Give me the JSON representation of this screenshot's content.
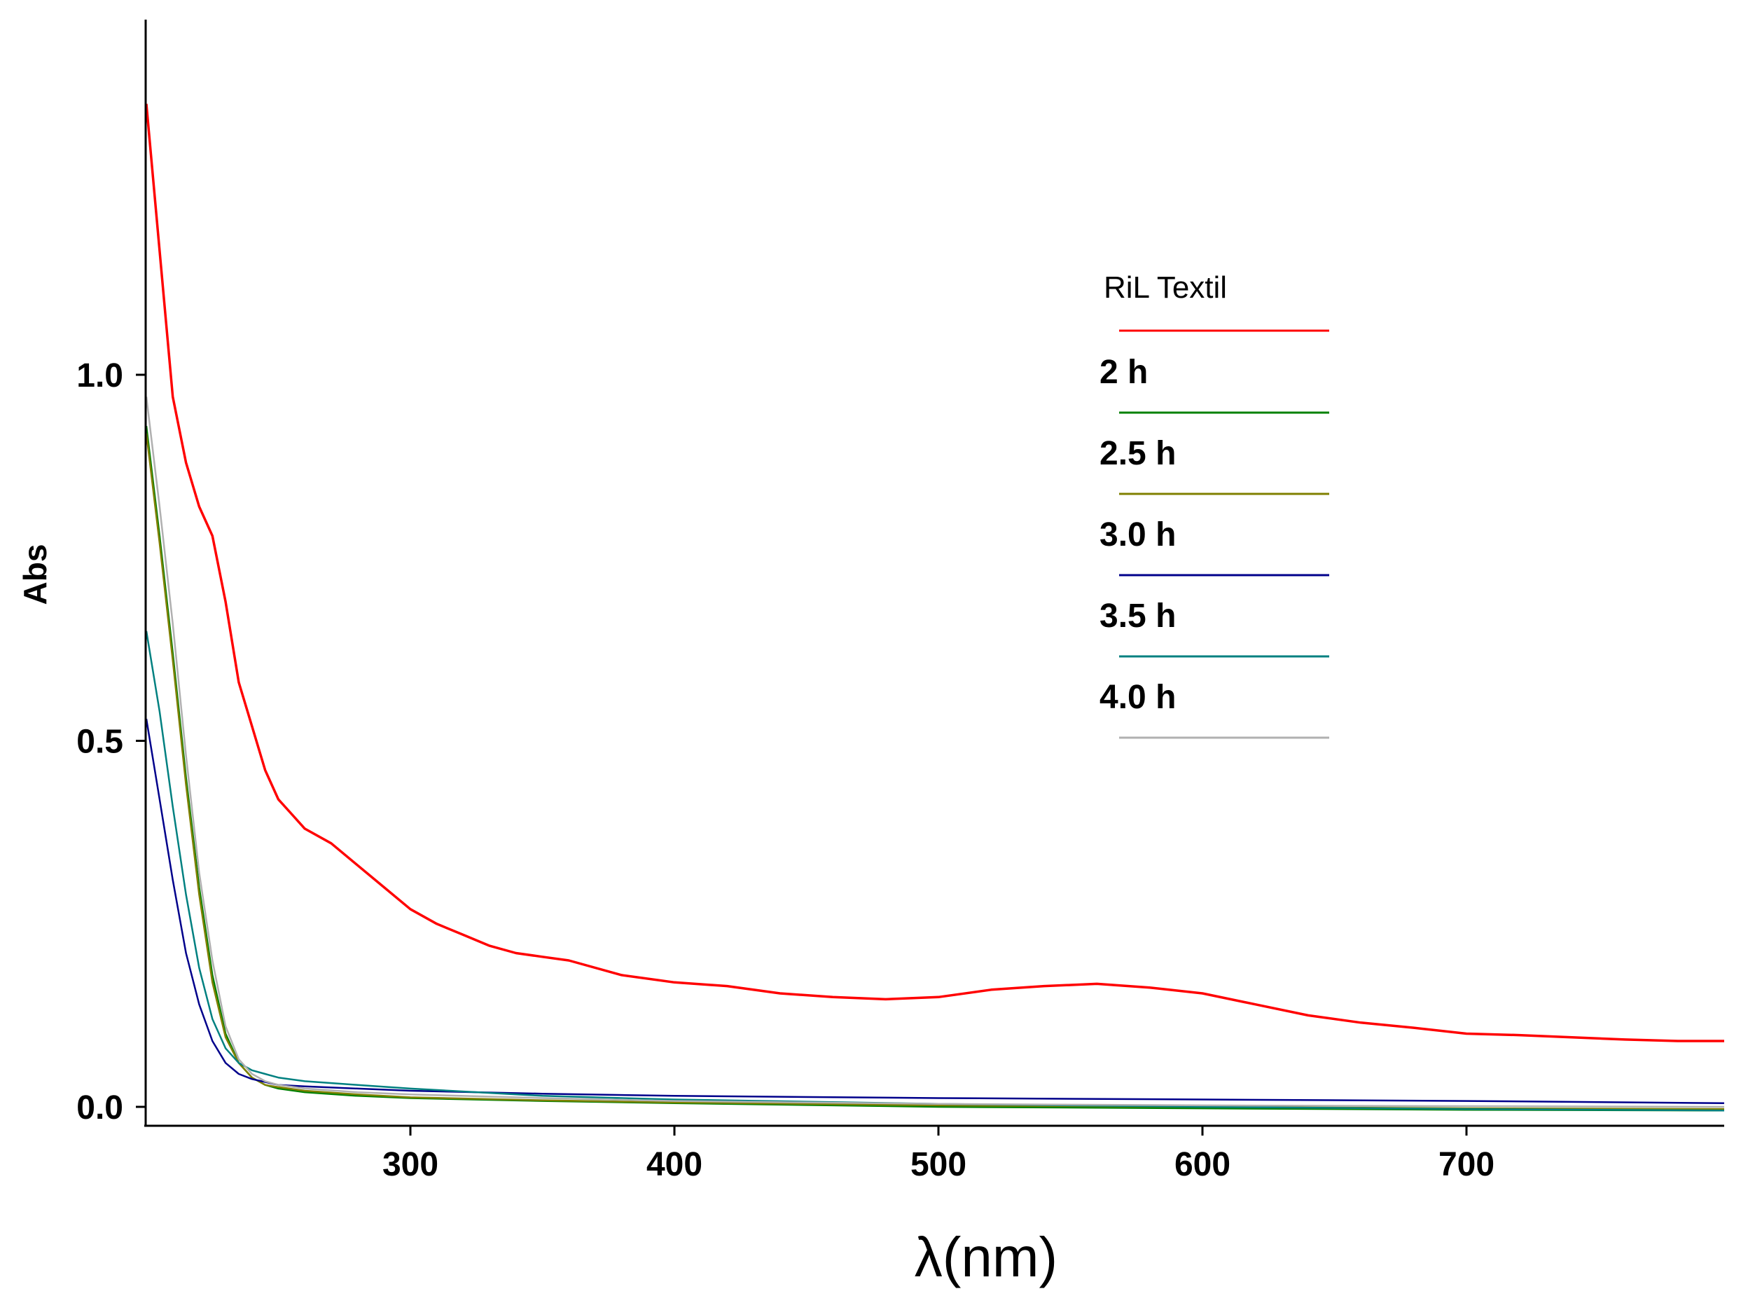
{
  "chart_data": {
    "type": "line",
    "xlabel": "λ(nm)",
    "ylabel": "Abs",
    "xlim": [
      200,
      800
    ],
    "ylim": [
      -0.03,
      1.5
    ],
    "x_ticks": [
      300,
      400,
      500,
      600,
      700
    ],
    "x_tick_labels": [
      "300",
      "400",
      "500",
      "600",
      "700"
    ],
    "y_ticks": [
      0.0,
      0.5,
      1.0
    ],
    "y_tick_labels": [
      "0.0",
      "0.5",
      "1.0"
    ],
    "grid": false,
    "legend_placement": "top-right",
    "legend_title": "RiL  Textil",
    "series": [
      {
        "name": "RiL  Textil",
        "color": "#ff0000",
        "legend": false,
        "x": [
          200,
          210,
          215,
          220,
          225,
          230,
          235,
          240,
          245,
          250,
          255,
          260,
          270,
          280,
          290,
          300,
          310,
          320,
          330,
          340,
          350,
          360,
          380,
          400,
          420,
          440,
          460,
          480,
          500,
          520,
          540,
          560,
          580,
          600,
          620,
          640,
          660,
          680,
          700,
          720,
          740,
          760,
          780,
          800
        ],
        "y": [
          1.37,
          0.97,
          0.88,
          0.82,
          0.78,
          0.69,
          0.58,
          0.52,
          0.46,
          0.42,
          0.4,
          0.38,
          0.36,
          0.33,
          0.3,
          0.27,
          0.25,
          0.235,
          0.22,
          0.21,
          0.205,
          0.2,
          0.18,
          0.17,
          0.165,
          0.155,
          0.15,
          0.147,
          0.15,
          0.16,
          0.165,
          0.168,
          0.163,
          0.155,
          0.14,
          0.125,
          0.115,
          0.108,
          0.1,
          0.098,
          0.095,
          0.092,
          0.09,
          0.09
        ]
      },
      {
        "name": "2 h",
        "color": "#008000",
        "legend": true,
        "x": [
          200,
          205,
          210,
          215,
          220,
          225,
          230,
          235,
          240,
          245,
          250,
          260,
          280,
          300,
          350,
          400,
          500,
          600,
          700,
          800
        ],
        "y": [
          0.93,
          0.78,
          0.62,
          0.45,
          0.3,
          0.18,
          0.1,
          0.06,
          0.04,
          0.03,
          0.025,
          0.02,
          0.015,
          0.012,
          0.008,
          0.005,
          0.0,
          -0.002,
          -0.004,
          -0.005
        ]
      },
      {
        "name": "2.5 h",
        "color": "#808000",
        "legend": true,
        "x": [
          200,
          205,
          210,
          215,
          220,
          225,
          230,
          235,
          240,
          245,
          250,
          260,
          280,
          300,
          350,
          400,
          500,
          600,
          700,
          800
        ],
        "y": [
          0.92,
          0.77,
          0.61,
          0.44,
          0.29,
          0.17,
          0.095,
          0.06,
          0.04,
          0.03,
          0.027,
          0.022,
          0.017,
          0.013,
          0.009,
          0.006,
          0.002,
          0.0,
          -0.002,
          -0.003
        ]
      },
      {
        "name": "3.0 h",
        "color": "#00008b",
        "legend": true,
        "x": [
          200,
          205,
          210,
          215,
          220,
          225,
          230,
          235,
          240,
          245,
          250,
          260,
          280,
          300,
          350,
          400,
          500,
          600,
          700,
          800
        ],
        "y": [
          0.53,
          0.42,
          0.31,
          0.21,
          0.14,
          0.09,
          0.06,
          0.045,
          0.038,
          0.034,
          0.03,
          0.028,
          0.025,
          0.022,
          0.018,
          0.015,
          0.012,
          0.01,
          0.008,
          0.005
        ]
      },
      {
        "name": "3.5 h",
        "color": "#008080",
        "legend": true,
        "x": [
          200,
          205,
          210,
          215,
          220,
          225,
          230,
          235,
          240,
          245,
          250,
          260,
          280,
          300,
          350,
          400,
          500,
          600,
          700,
          800
        ],
        "y": [
          0.65,
          0.54,
          0.41,
          0.29,
          0.19,
          0.12,
          0.08,
          0.06,
          0.05,
          0.045,
          0.04,
          0.035,
          0.03,
          0.025,
          0.015,
          0.01,
          0.004,
          0.0,
          -0.003,
          -0.005
        ]
      },
      {
        "name": "4.0 h",
        "color": "#b0b0b0",
        "legend": true,
        "x": [
          200,
          205,
          210,
          215,
          220,
          225,
          230,
          235,
          240,
          245,
          250,
          260,
          280,
          300,
          350,
          400,
          500,
          600,
          700,
          800
        ],
        "y": [
          0.97,
          0.82,
          0.66,
          0.48,
          0.32,
          0.2,
          0.11,
          0.065,
          0.045,
          0.035,
          0.03,
          0.025,
          0.02,
          0.017,
          0.012,
          0.008,
          0.004,
          0.002,
          0.001,
          0.0
        ]
      }
    ]
  }
}
